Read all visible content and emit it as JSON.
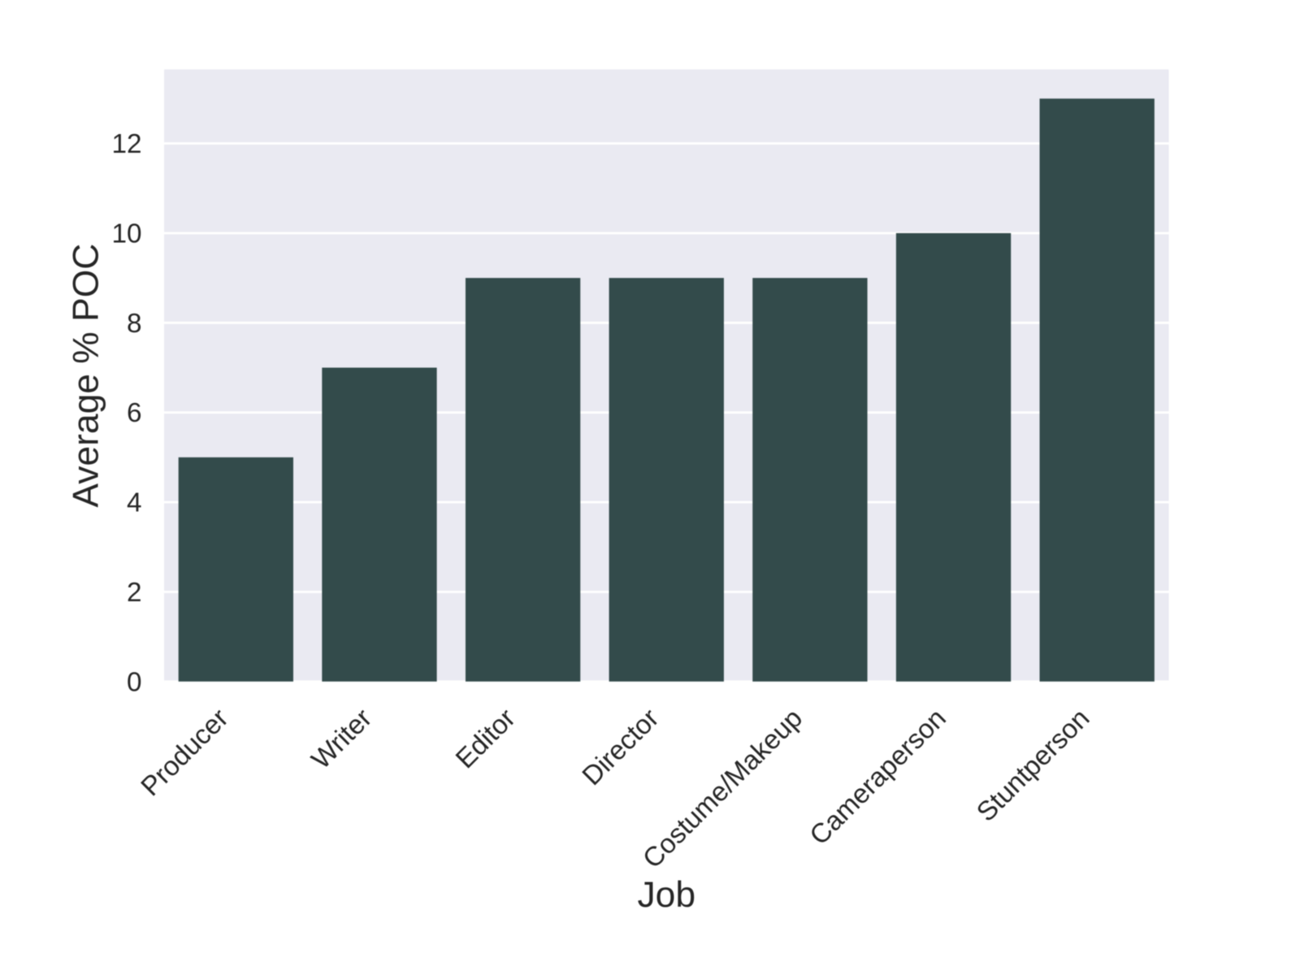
{
  "chart_data": {
    "type": "bar",
    "xlabel": "Job",
    "ylabel": "Average % POC",
    "categories": [
      "Producer",
      "Writer",
      "Editor",
      "Director",
      "Costume/Makeup",
      "Cameraperson",
      "Stuntperson"
    ],
    "values": [
      5,
      7,
      9,
      9,
      9,
      10,
      13
    ],
    "yticks": [
      0,
      2,
      4,
      6,
      8,
      10,
      12
    ],
    "ylim": [
      0,
      13.65
    ],
    "grid": true,
    "legend": false,
    "x_tick_rotation_deg": 45,
    "colors": {
      "bar": "#334b4b",
      "plot_background": "#eaeaf2",
      "grid": "#ffffff",
      "text": "#262626",
      "figure_background": "#ffffff"
    }
  }
}
